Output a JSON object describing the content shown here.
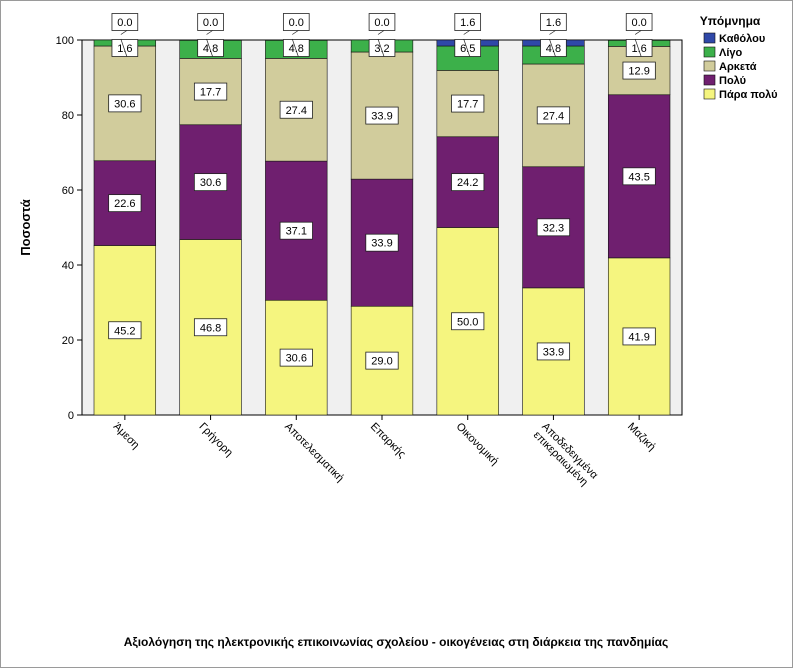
{
  "chart_data": {
    "type": "bar",
    "stacked": true,
    "title": "",
    "xlabel": "Αξιολόγηση της ηλεκτρονικής επικοινωνίας σχολείου - οικογένειας στη διάρκεια της πανδημίας",
    "ylabel": "Ποσοστά",
    "ylim": [
      0,
      100
    ],
    "yticks": [
      "0",
      "20",
      "40",
      "60",
      "80",
      "100"
    ],
    "categories": [
      "Άμεση",
      "Γρήγορη",
      "Αποτελεσματική",
      "Επαρκής",
      "Οικονομική",
      "Αποδεδειγμένα\nεπικεραιωμένη",
      "Μαζική"
    ],
    "legend_title": "Υπόμνημα",
    "legend_position": "top-right",
    "series": [
      {
        "name": "Πάρα πολύ",
        "color": "#f5f57f",
        "values": [
          45.2,
          46.8,
          30.6,
          29.0,
          50.0,
          33.9,
          41.9
        ],
        "labels": [
          "45.2",
          "46.8",
          "30.6",
          "29.0",
          "50.0",
          "33.9",
          "41.9"
        ]
      },
      {
        "name": "Πολύ",
        "color": "#6f1f6f",
        "values": [
          22.6,
          30.6,
          37.1,
          33.9,
          24.2,
          32.3,
          43.5
        ],
        "labels": [
          "22.6",
          "30.6",
          "37.1",
          "33.9",
          "24.2",
          "32.3",
          "43.5"
        ]
      },
      {
        "name": "Αρκετά",
        "color": "#d1cc9c",
        "values": [
          30.6,
          17.7,
          27.4,
          33.9,
          17.7,
          27.4,
          12.9
        ],
        "labels": [
          "30.6",
          "17.7",
          "27.4",
          "33.9",
          "17.7",
          "27.4",
          "12.9"
        ]
      },
      {
        "name": "Λίγο",
        "color": "#3cb04a",
        "values": [
          1.6,
          4.8,
          4.8,
          3.2,
          6.5,
          4.8,
          1.6
        ],
        "labels": [
          "1.6",
          "4.8",
          "4.8",
          "3.2",
          "6.5",
          "4.8",
          "1.6"
        ]
      },
      {
        "name": "Καθόλου",
        "color": "#2f48a8",
        "values": [
          0.0,
          0.0,
          0.0,
          0.0,
          1.6,
          1.6,
          0.0
        ],
        "labels": [
          "0.0",
          "0.0",
          "0.0",
          "0.0",
          "1.6",
          "1.6",
          "0.0"
        ]
      }
    ],
    "legend_order": [
      "Καθόλου",
      "Λίγο",
      "Αρκετά",
      "Πολύ",
      "Πάρα πολύ"
    ],
    "plot_background": "#f0f0f0"
  }
}
